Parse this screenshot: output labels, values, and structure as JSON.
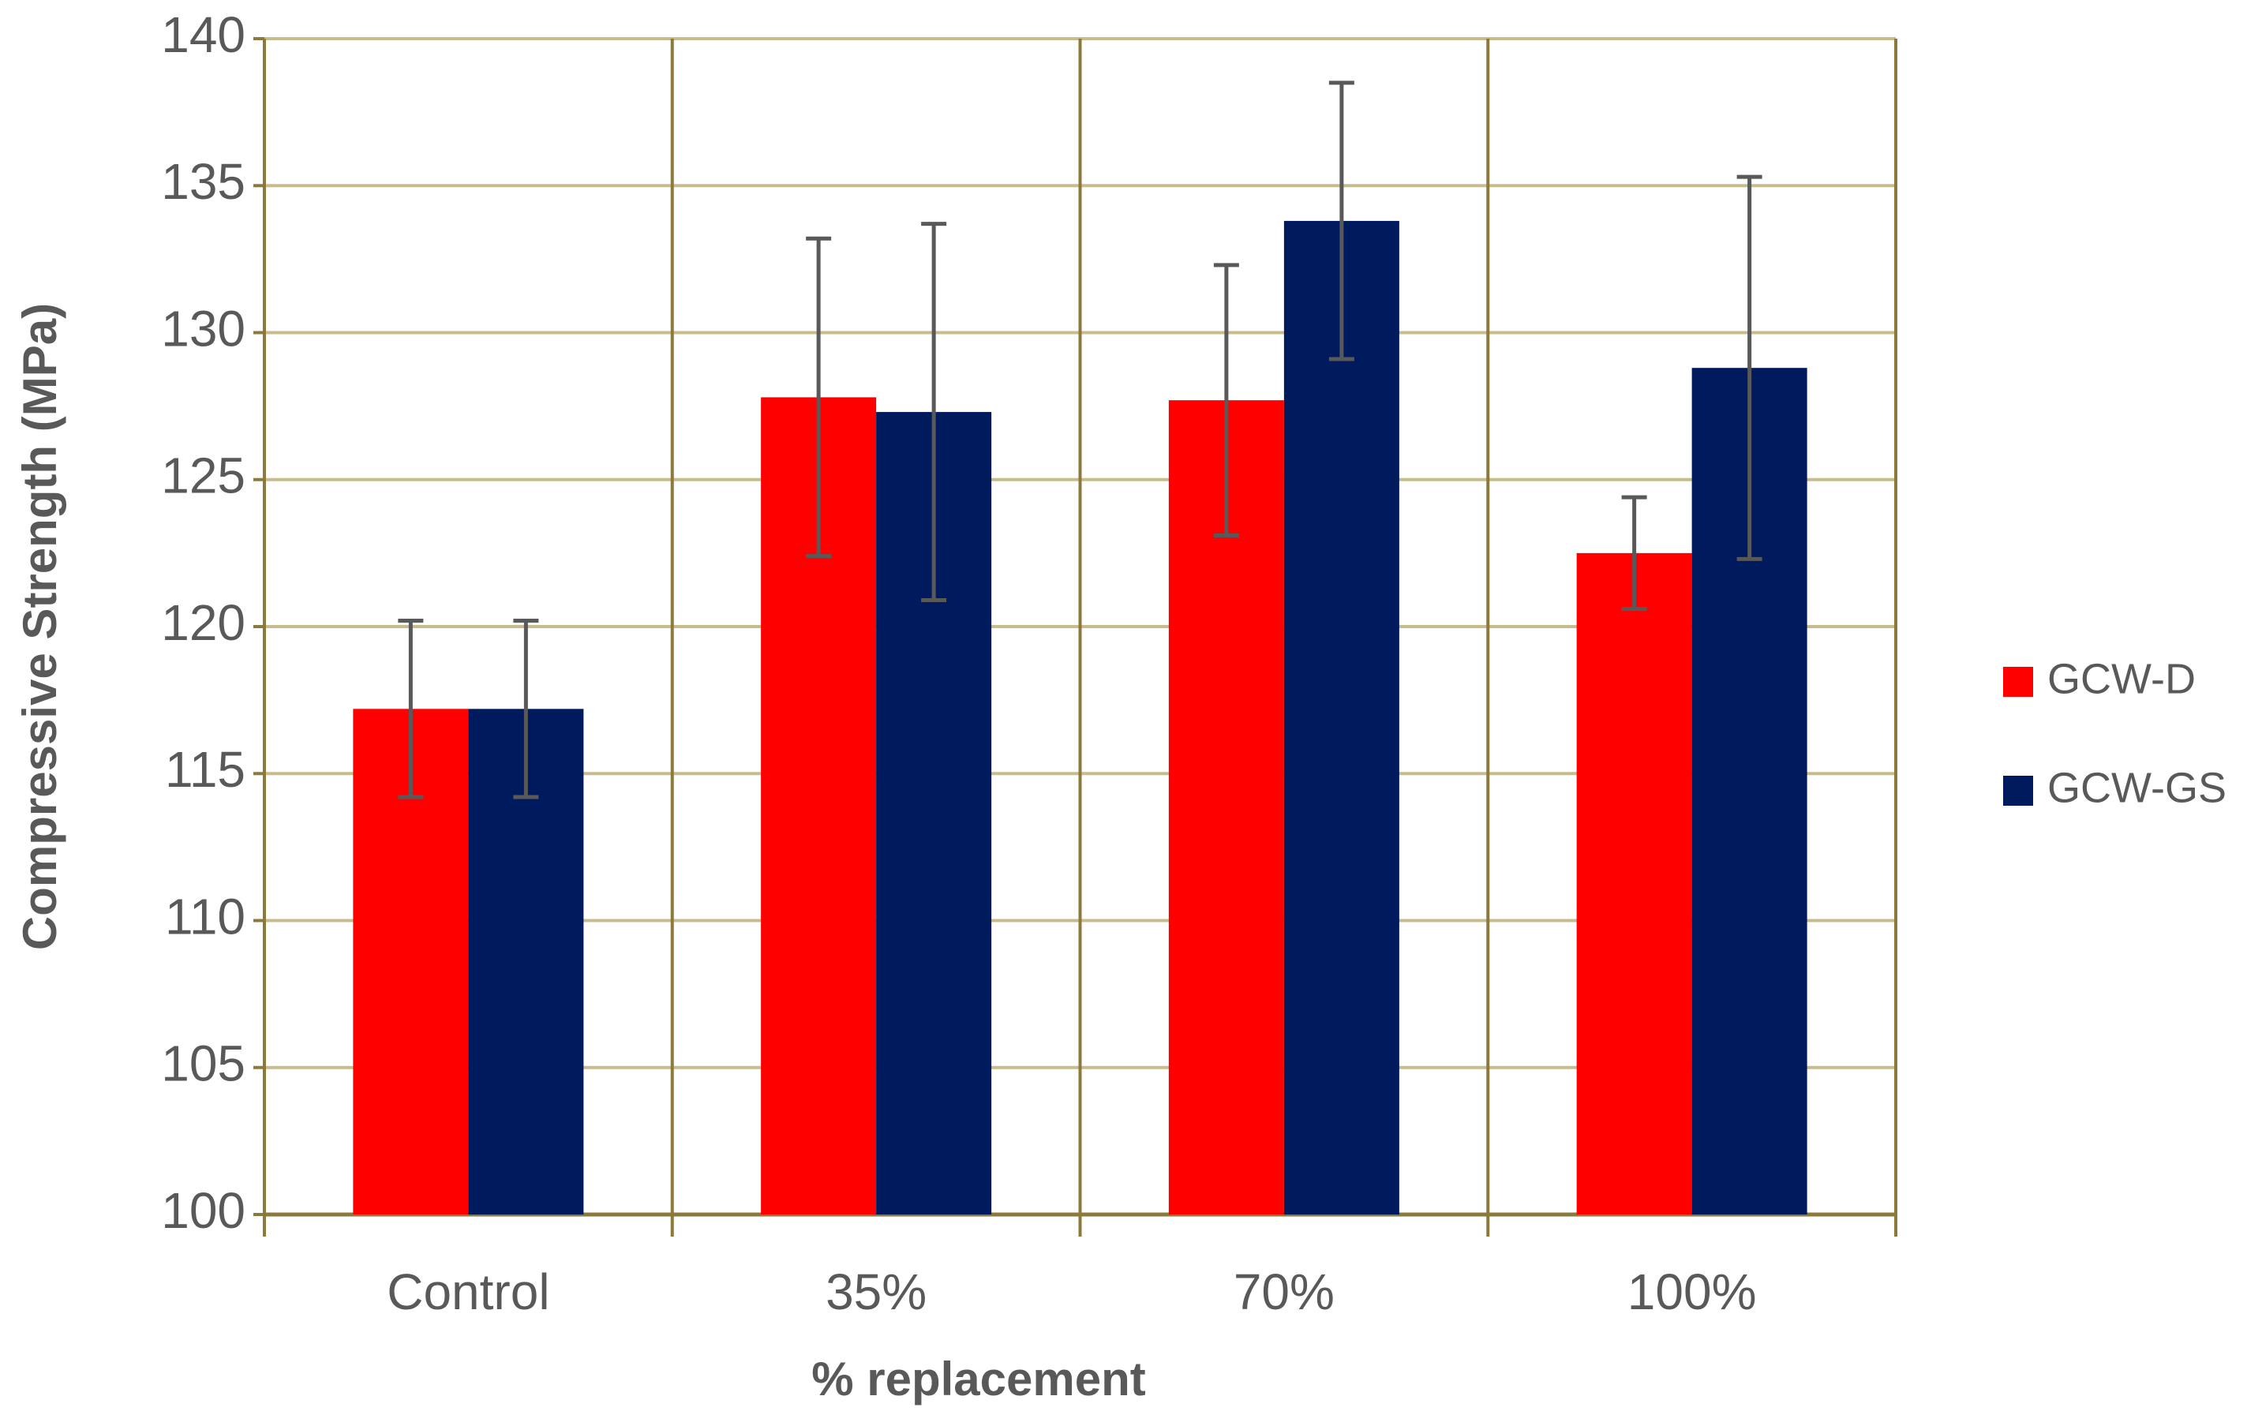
{
  "chart_data": {
    "type": "bar",
    "x_label": "% replacement",
    "y_label": "Compressive Strength (MPa)",
    "categories": [
      "Control",
      "35%",
      "70%",
      "100%"
    ],
    "series": [
      {
        "name": "GCW-D",
        "color": "#ff0000",
        "values": [
          117.2,
          127.8,
          127.7,
          122.5
        ],
        "errors": [
          3.0,
          5.4,
          4.6,
          1.9
        ]
      },
      {
        "name": "GCW-GS",
        "color": "#001a5e",
        "values": [
          117.2,
          127.3,
          133.8,
          128.8
        ],
        "errors": [
          3.0,
          6.4,
          4.7,
          6.5
        ]
      }
    ],
    "ylim": [
      100,
      140
    ],
    "yticks": [
      100,
      105,
      110,
      115,
      120,
      125,
      130,
      135,
      140
    ],
    "grid": true,
    "legend": "right"
  }
}
